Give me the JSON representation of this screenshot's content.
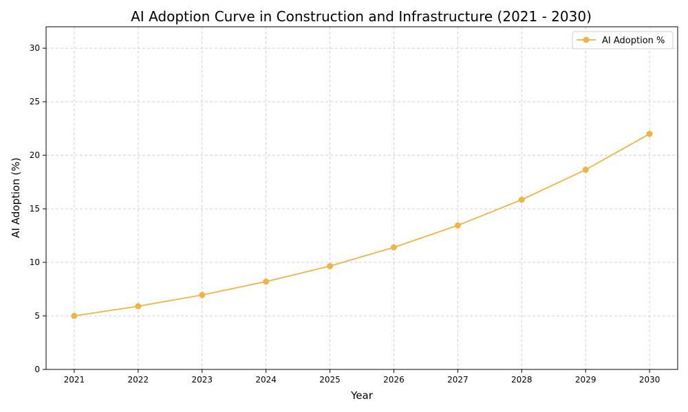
{
  "chart_data": {
    "type": "line",
    "title": "AI Adoption Curve in Construction and Infrastructure (2021 - 2030)",
    "xlabel": "Year",
    "ylabel": "AI Adoption (%)",
    "x": [
      2021,
      2022,
      2023,
      2024,
      2025,
      2026,
      2027,
      2028,
      2029,
      2030
    ],
    "xlim": [
      2020.56,
      2030.44
    ],
    "ylim": [
      0,
      32
    ],
    "yticks": [
      0,
      5,
      10,
      15,
      20,
      25,
      30
    ],
    "series": [
      {
        "name": "AI Adoption %",
        "color": "#f0b444",
        "marker": "circle",
        "values": [
          5.0,
          5.9,
          6.95,
          8.2,
          9.65,
          11.4,
          13.45,
          15.85,
          18.65,
          22.0
        ]
      }
    ],
    "grid": true,
    "legend": "top-right"
  }
}
